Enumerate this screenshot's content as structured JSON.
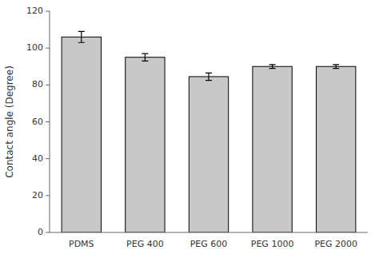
{
  "chart_data": {
    "type": "bar",
    "categories": [
      "PDMS",
      "PEG 400",
      "PEG 600",
      "PEG 1000",
      "PEG 2000"
    ],
    "values": [
      106.0,
      95.0,
      84.5,
      90.0,
      90.0
    ],
    "errors": [
      3.0,
      2.0,
      2.0,
      1.0,
      1.0
    ],
    "color": "#c8c8c8",
    "ylabel": "Contact angle (Degree)",
    "ylim": [
      0,
      120
    ],
    "yticks": [
      0,
      20,
      40,
      60,
      80,
      100,
      120
    ],
    "grid": false
  }
}
